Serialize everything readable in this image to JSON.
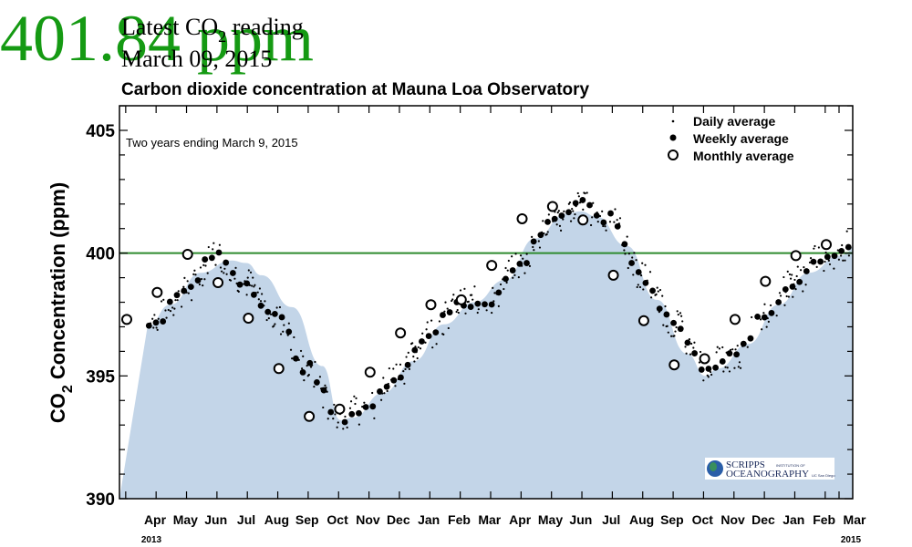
{
  "header": {
    "latest_label_pre": "Latest CO",
    "latest_label_sub": "2",
    "latest_label_post": " reading",
    "latest_date": "March 09, 2015",
    "reading": "401.84 ppm",
    "reading_color": "#159a13"
  },
  "logo": {
    "line1": "SCRIPPS",
    "line1_small": "INSTITUTION OF",
    "line2": "OCEANOGRAPHY",
    "line2_small": "UC San Diego"
  },
  "chart_data": {
    "type": "scatter",
    "title": "Carbon dioxide concentration at Mauna Loa Observatory",
    "annotation": "Two years ending March 9, 2015",
    "ylabel_pre": "CO",
    "ylabel_sub": "2",
    "ylabel_post": " Concentration (ppm)",
    "ylim": [
      390,
      406
    ],
    "yticks": [
      390,
      395,
      400,
      405
    ],
    "ytick_labels": [
      "390",
      "395",
      "400",
      "405"
    ],
    "y_minor_step": 1,
    "reference_line": {
      "value": 400,
      "color": "#2e8b2e"
    },
    "fill_color": "#c3d5e8",
    "legend": {
      "placement": "top-right",
      "entries": [
        {
          "marker": "dot",
          "label": "Daily average"
        },
        {
          "marker": "filled-circle",
          "label": "Weekly average"
        },
        {
          "marker": "open-circle",
          "label": "Monthly average"
        }
      ]
    },
    "xlim_months": [
      0,
      24
    ],
    "month_ticks": [
      "Apr",
      "May",
      "Jun",
      "Jul",
      "Aug",
      "Sep",
      "Oct",
      "Nov",
      "Dec",
      "Jan",
      "Feb",
      "Mar",
      "Apr",
      "May",
      "Jun",
      "Jul",
      "Aug",
      "Sep",
      "Oct",
      "Nov",
      "Dec",
      "Jan",
      "Feb",
      "Mar"
    ],
    "year_labels": [
      {
        "label": "2013",
        "at_month_index": 0
      },
      {
        "label": "2015",
        "at_month_index": 23
      }
    ],
    "monthly_average": {
      "x_month": [
        0.0,
        1.0,
        2.0,
        3.0,
        4.0,
        5.0,
        6.0,
        7.0,
        8.0,
        9.0,
        10.0,
        11.0,
        12.0,
        13.0,
        14.0,
        15.0,
        16.0,
        17.0,
        18.0,
        19.0,
        20.0,
        21.0,
        22.0,
        23.0
      ],
      "values": [
        397.3,
        398.4,
        399.95,
        398.8,
        397.35,
        395.3,
        393.35,
        393.65,
        395.15,
        396.75,
        397.9,
        398.1,
        399.5,
        401.4,
        401.9,
        401.35,
        399.1,
        397.25,
        395.45,
        395.7,
        397.3,
        398.85,
        399.9,
        400.35
      ]
    },
    "trend_fill": {
      "x_month": [
        -0.25,
        0.5,
        1.5,
        2.5,
        3.0,
        3.5,
        4.5,
        5.5,
        6.1,
        6.5,
        7.5,
        8.5,
        9.5,
        10.5,
        11.5,
        12.5,
        13.5,
        14.0,
        14.5,
        15.5,
        16.5,
        17.5,
        18.1,
        18.5,
        19.5,
        20.5,
        21.5,
        22.5,
        23.5,
        24.0
      ],
      "values": [
        397.0,
        397.9,
        399.2,
        399.7,
        399.6,
        399.1,
        397.8,
        395.4,
        393.2,
        393.3,
        394.3,
        395.6,
        397.1,
        398.0,
        398.9,
        400.6,
        401.6,
        401.7,
        401.5,
        400.3,
        398.1,
        395.9,
        395.0,
        395.3,
        396.3,
        397.9,
        399.2,
        399.9,
        400.9,
        401.2
      ]
    }
  }
}
